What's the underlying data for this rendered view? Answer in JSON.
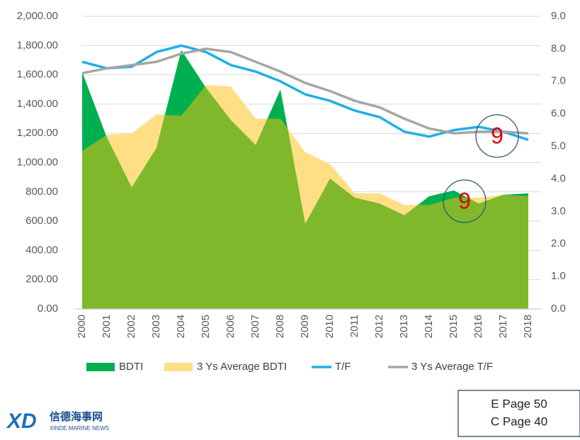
{
  "chart_data": {
    "type": "area_line",
    "categories": [
      "2000",
      "2001",
      "2002",
      "2003",
      "2004",
      "2005",
      "2006",
      "2007",
      "2008",
      "2009",
      "2010",
      "2011",
      "2012",
      "2013",
      "2014",
      "2015",
      "2016",
      "2017",
      "2018"
    ],
    "series": [
      {
        "name": "BDTI",
        "kind": "area",
        "color": "#00b050",
        "values": [
          1620,
          1170,
          830,
          1100,
          1770,
          1510,
          1290,
          1120,
          1500,
          580,
          890,
          760,
          720,
          640,
          770,
          810,
          720,
          780,
          790
        ]
      },
      {
        "name": "3 Ys Average BDTI",
        "kind": "area",
        "color": "#ffdf85",
        "values": [
          1080,
          1190,
          1200,
          1330,
          1320,
          1530,
          1520,
          1300,
          1300,
          1070,
          990,
          790,
          790,
          710,
          710,
          760,
          760,
          780,
          770
        ]
      },
      {
        "name": "T/F",
        "kind": "line",
        "axis": "y2",
        "color": "#1eb0e6",
        "values": [
          7.6,
          7.4,
          7.45,
          7.9,
          8.1,
          7.9,
          7.5,
          7.3,
          7.0,
          6.6,
          6.4,
          6.1,
          5.9,
          5.45,
          5.3,
          5.5,
          5.6,
          5.45,
          5.2
        ]
      },
      {
        "name": "3 Ys Average T/F",
        "kind": "line",
        "axis": "y2",
        "color": "#a6a6a6",
        "values": [
          7.25,
          7.4,
          7.5,
          7.6,
          7.85,
          8.0,
          7.9,
          7.6,
          7.3,
          6.95,
          6.7,
          6.4,
          6.2,
          5.85,
          5.55,
          5.4,
          5.45,
          5.45,
          5.4
        ]
      }
    ],
    "overlap_color": "#80b82b",
    "ylim": [
      0,
      2000
    ],
    "yticks": [
      {
        "value": 0,
        "label": "0.00"
      },
      {
        "value": 200,
        "label": "200.00"
      },
      {
        "value": 400,
        "label": "400.00"
      },
      {
        "value": 600,
        "label": "600.00"
      },
      {
        "value": 800,
        "label": "800.00"
      },
      {
        "value": 1000,
        "label": "1,000.00"
      },
      {
        "value": 1200,
        "label": "1,200.00"
      },
      {
        "value": 1400,
        "label": "1,400.00"
      },
      {
        "value": 1600,
        "label": "1,600.00"
      },
      {
        "value": 1800,
        "label": "1,800.00"
      },
      {
        "value": 2000,
        "label": "2,000.00"
      }
    ],
    "y2lim": [
      0,
      9
    ],
    "y2ticks": [
      {
        "value": 0,
        "label": "0.0"
      },
      {
        "value": 1,
        "label": "1.0"
      },
      {
        "value": 2,
        "label": "2.0"
      },
      {
        "value": 3,
        "label": "3.0"
      },
      {
        "value": 4,
        "label": "4.0"
      },
      {
        "value": 5,
        "label": "5.0"
      },
      {
        "value": 6,
        "label": "6.0"
      },
      {
        "value": 7,
        "label": "7.0"
      },
      {
        "value": 8,
        "label": "8.0"
      },
      {
        "value": 9,
        "label": "9.0"
      }
    ],
    "annotations": [
      "9",
      "9"
    ],
    "legend": "bottom"
  },
  "page_ref": [
    "E Page 50",
    "C Page 40"
  ],
  "logo": {
    "mark": "XD",
    "name": "信德海事网",
    "subtitle": "XINDE MARINE NEWS"
  }
}
